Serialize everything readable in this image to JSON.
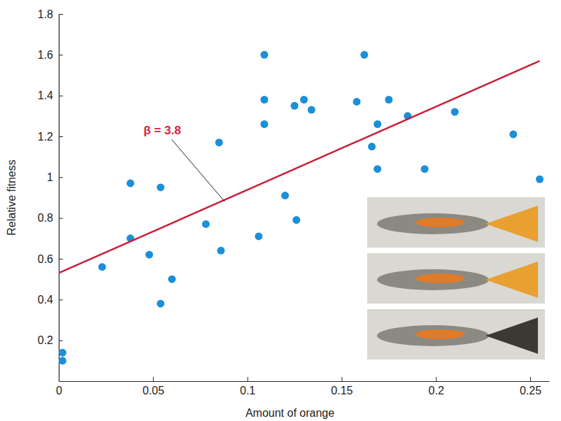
{
  "chart_data": {
    "type": "scatter",
    "x_label": "Amount of orange",
    "y_label": "Relative fitness",
    "xlim": [
      0,
      0.26
    ],
    "ylim": [
      0,
      1.8
    ],
    "xticks": [
      0,
      0.05,
      0.1,
      0.15,
      0.2,
      0.25
    ],
    "yticks": [
      0.2,
      0.4,
      0.6,
      0.8,
      1,
      1.2,
      1.4,
      1.6,
      1.8
    ],
    "grid": false,
    "color": "#1b8fd8",
    "marker": "circle",
    "x": [
      0.002,
      0.002,
      0.023,
      0.038,
      0.038,
      0.048,
      0.054,
      0.054,
      0.06,
      0.078,
      0.085,
      0.086,
      0.106,
      0.109,
      0.109,
      0.109,
      0.12,
      0.125,
      0.126,
      0.13,
      0.134,
      0.158,
      0.162,
      0.166,
      0.169,
      0.169,
      0.175,
      0.185,
      0.194,
      0.21,
      0.241,
      0.255
    ],
    "values": [
      0.14,
      0.1,
      0.56,
      0.97,
      0.7,
      0.62,
      0.95,
      0.38,
      0.5,
      0.77,
      1.17,
      0.64,
      0.71,
      1.6,
      1.38,
      1.26,
      0.91,
      1.35,
      0.79,
      1.38,
      1.33,
      1.37,
      1.6,
      1.15,
      1.26,
      1.04,
      1.38,
      1.3,
      1.04,
      1.32,
      1.21,
      0.99
    ],
    "fit": {
      "x": [
        0,
        0.255
      ],
      "y": [
        0.53,
        1.57
      ],
      "color": "#c8203a",
      "line_style": "solid"
    },
    "annotations": [
      {
        "text": "β = 3.8",
        "x": 0.088,
        "y": 0.88
      }
    ]
  }
}
